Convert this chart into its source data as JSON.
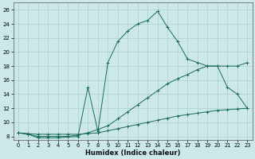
{
  "bg_color": "#cce8e8",
  "line_color": "#1a6b5a",
  "grid_color": "#aacfcf",
  "xlabel": "Humidex (Indice chaleur)",
  "xlim": [
    -0.5,
    23.5
  ],
  "ylim": [
    7.5,
    27
  ],
  "xticks": [
    0,
    1,
    2,
    3,
    4,
    5,
    6,
    7,
    8,
    9,
    10,
    11,
    12,
    13,
    14,
    15,
    16,
    17,
    18,
    19,
    20,
    21,
    22,
    23
  ],
  "yticks": [
    8,
    10,
    12,
    14,
    16,
    18,
    20,
    22,
    24,
    26
  ],
  "curve1_x": [
    0,
    1,
    2,
    3,
    4,
    5,
    6,
    7,
    8,
    9,
    10,
    11,
    12,
    13,
    14,
    15,
    16,
    17,
    18,
    19,
    20,
    21,
    22,
    23
  ],
  "curve1_y": [
    8.5,
    8.3,
    7.8,
    7.8,
    7.8,
    7.9,
    8.0,
    15.0,
    8.7,
    18.5,
    21.5,
    23.0,
    24.0,
    24.5,
    25.8,
    23.5,
    21.5,
    19.0,
    18.5,
    18.0,
    18.0,
    15.0,
    14.0,
    12.0
  ],
  "curve2_x": [
    0,
    1,
    2,
    3,
    4,
    5,
    6,
    7,
    8,
    9,
    10,
    11,
    12,
    13,
    14,
    15,
    16,
    17,
    18,
    19,
    20,
    21,
    22,
    23
  ],
  "curve2_y": [
    8.5,
    8.3,
    8.0,
    8.0,
    8.0,
    8.0,
    8.2,
    8.5,
    9.0,
    9.5,
    10.5,
    11.5,
    12.5,
    13.5,
    14.5,
    15.5,
    16.2,
    16.8,
    17.5,
    18.0,
    18.0,
    18.0,
    18.0,
    18.5
  ],
  "curve3_x": [
    0,
    1,
    2,
    3,
    4,
    5,
    6,
    7,
    8,
    9,
    10,
    11,
    12,
    13,
    14,
    15,
    16,
    17,
    18,
    19,
    20,
    21,
    22,
    23
  ],
  "curve3_y": [
    8.5,
    8.4,
    8.3,
    8.3,
    8.3,
    8.3,
    8.3,
    8.4,
    8.5,
    8.8,
    9.1,
    9.4,
    9.7,
    10.0,
    10.3,
    10.6,
    10.9,
    11.1,
    11.3,
    11.5,
    11.7,
    11.8,
    11.9,
    12.0
  ]
}
